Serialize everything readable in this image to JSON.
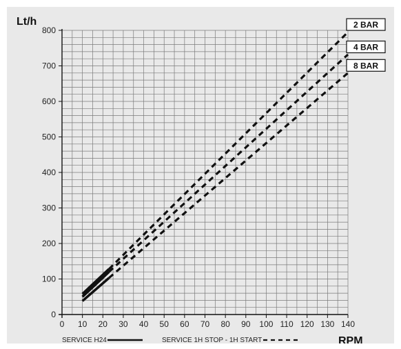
{
  "chart_data": {
    "type": "line",
    "title": "",
    "ylabel": "Lt/h",
    "xlabel": "RPM",
    "xlim": [
      0,
      140
    ],
    "ylim": [
      0,
      800
    ],
    "x_ticks": [
      0,
      10,
      20,
      30,
      40,
      50,
      60,
      70,
      80,
      90,
      100,
      110,
      120,
      130,
      140
    ],
    "y_ticks": [
      0,
      100,
      200,
      300,
      400,
      500,
      600,
      700,
      800
    ],
    "grid": true,
    "series": [
      {
        "name": "2 BAR",
        "segments": [
          {
            "style": "solid",
            "x": [
              10,
              23
            ],
            "y": [
              58,
              128
            ]
          },
          {
            "style": "dashed",
            "x": [
              23,
              140
            ],
            "y": [
              128,
              795
            ]
          }
        ]
      },
      {
        "name": "4 BAR",
        "segments": [
          {
            "style": "solid",
            "x": [
              10,
              23
            ],
            "y": [
              50,
              120
            ]
          },
          {
            "style": "dashed",
            "x": [
              23,
              140
            ],
            "y": [
              120,
              732
            ]
          }
        ]
      },
      {
        "name": "8 BAR",
        "segments": [
          {
            "style": "solid",
            "x": [
              10,
              23
            ],
            "y": [
              38,
              103
            ]
          },
          {
            "style": "dashed",
            "x": [
              23,
              140
            ],
            "y": [
              103,
              680
            ]
          }
        ]
      }
    ],
    "legend": [
      {
        "label": "SERVICE H24",
        "style": "solid"
      },
      {
        "label": "SERVICE 1H STOP - 1H START",
        "style": "dashed"
      }
    ],
    "line_color": "#111111",
    "grid_color": "#7a7a7a",
    "background": "#e9e9e9"
  }
}
